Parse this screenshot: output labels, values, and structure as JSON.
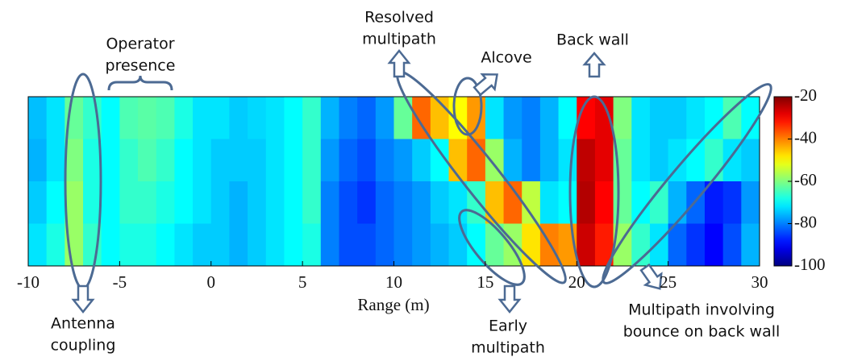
{
  "chart_data": {
    "type": "heatmap",
    "x_label": "Range (m)",
    "xbins": [
      -10,
      -9,
      -8,
      -7,
      -6,
      -5,
      -4,
      -3,
      -2,
      -1,
      0,
      1,
      2,
      3,
      4,
      5,
      6,
      7,
      8,
      9,
      10,
      11,
      12,
      13,
      14,
      15,
      16,
      17,
      18,
      19,
      20,
      21,
      22,
      23,
      24,
      25,
      26,
      27,
      28,
      29,
      30
    ],
    "xlim": [
      -10,
      30
    ],
    "xticks": [
      -10,
      -5,
      0,
      5,
      10,
      15,
      20,
      25,
      30
    ],
    "z": [
      [
        -75,
        -72,
        -62,
        -66,
        -70,
        -64,
        -63,
        -64,
        -68,
        -72,
        -72,
        -74,
        -73,
        -72,
        -70,
        -66,
        -76,
        -80,
        -82,
        -78,
        -62,
        -38,
        -45,
        -50,
        -42,
        -72,
        -78,
        -80,
        -76,
        -70,
        -30,
        -28,
        -60,
        -72,
        -74,
        -74,
        -72,
        -70,
        -64,
        -70
      ],
      [
        -76,
        -72,
        -60,
        -68,
        -70,
        -66,
        -64,
        -66,
        -70,
        -72,
        -74,
        -74,
        -74,
        -72,
        -70,
        -66,
        -78,
        -82,
        -84,
        -80,
        -78,
        -74,
        -70,
        -45,
        -38,
        -58,
        -76,
        -80,
        -76,
        -72,
        -25,
        -28,
        -62,
        -72,
        -74,
        -72,
        -70,
        -66,
        -72,
        -74
      ],
      [
        -74,
        -70,
        -58,
        -68,
        -70,
        -66,
        -66,
        -68,
        -70,
        -72,
        -74,
        -76,
        -74,
        -72,
        -70,
        -66,
        -80,
        -84,
        -86,
        -82,
        -80,
        -78,
        -74,
        -72,
        -66,
        -45,
        -38,
        -55,
        -72,
        -70,
        -24,
        -30,
        -62,
        -70,
        -66,
        -76,
        -82,
        -88,
        -86,
        -78
      ],
      [
        -72,
        -68,
        -58,
        -66,
        -70,
        -68,
        -68,
        -70,
        -72,
        -74,
        -74,
        -76,
        -74,
        -72,
        -70,
        -68,
        -80,
        -84,
        -84,
        -82,
        -80,
        -78,
        -76,
        -74,
        -70,
        -62,
        -58,
        -48,
        -40,
        -42,
        -26,
        -32,
        -58,
        -66,
        -72,
        -82,
        -86,
        -90,
        -84,
        -76
      ]
    ],
    "colormap": "jet",
    "clim": [
      -100,
      -20
    ],
    "cticks": [
      -20,
      -40,
      -60,
      -80,
      -100
    ],
    "annotations": [
      {
        "lines": [
          "Operator",
          "presence"
        ]
      },
      {
        "lines": [
          "Resolved",
          "multipath"
        ]
      },
      {
        "lines": [
          "Alcove"
        ]
      },
      {
        "lines": [
          "Back wall"
        ]
      },
      {
        "lines": [
          "Antenna",
          "coupling"
        ]
      },
      {
        "lines": [
          "Early",
          "multipath"
        ]
      },
      {
        "lines": [
          "Multipath involving",
          "bounce on back wall"
        ]
      }
    ]
  }
}
